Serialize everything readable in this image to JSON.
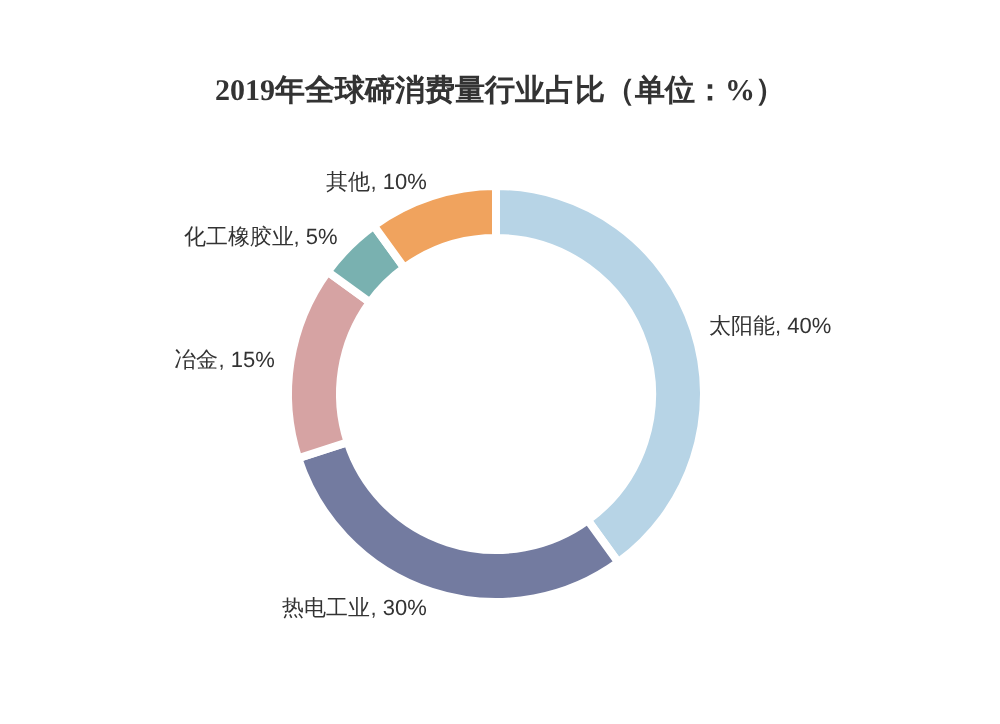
{
  "chart_data": {
    "type": "donut",
    "title": "2019年全球碲消费量行业占比（单位：%）",
    "categories": [
      "太阳能",
      "热电工业",
      "冶金",
      "化工橡胶业",
      "其他"
    ],
    "values": [
      40,
      30,
      15,
      5,
      10
    ],
    "colors": [
      "#b7d4e6",
      "#737ba0",
      "#d6a3a3",
      "#79b1b0",
      "#f0a35e"
    ],
    "value_labels": [
      ", 40%",
      ", 30%",
      ", 15%",
      ", 5%",
      ", 10%"
    ]
  }
}
